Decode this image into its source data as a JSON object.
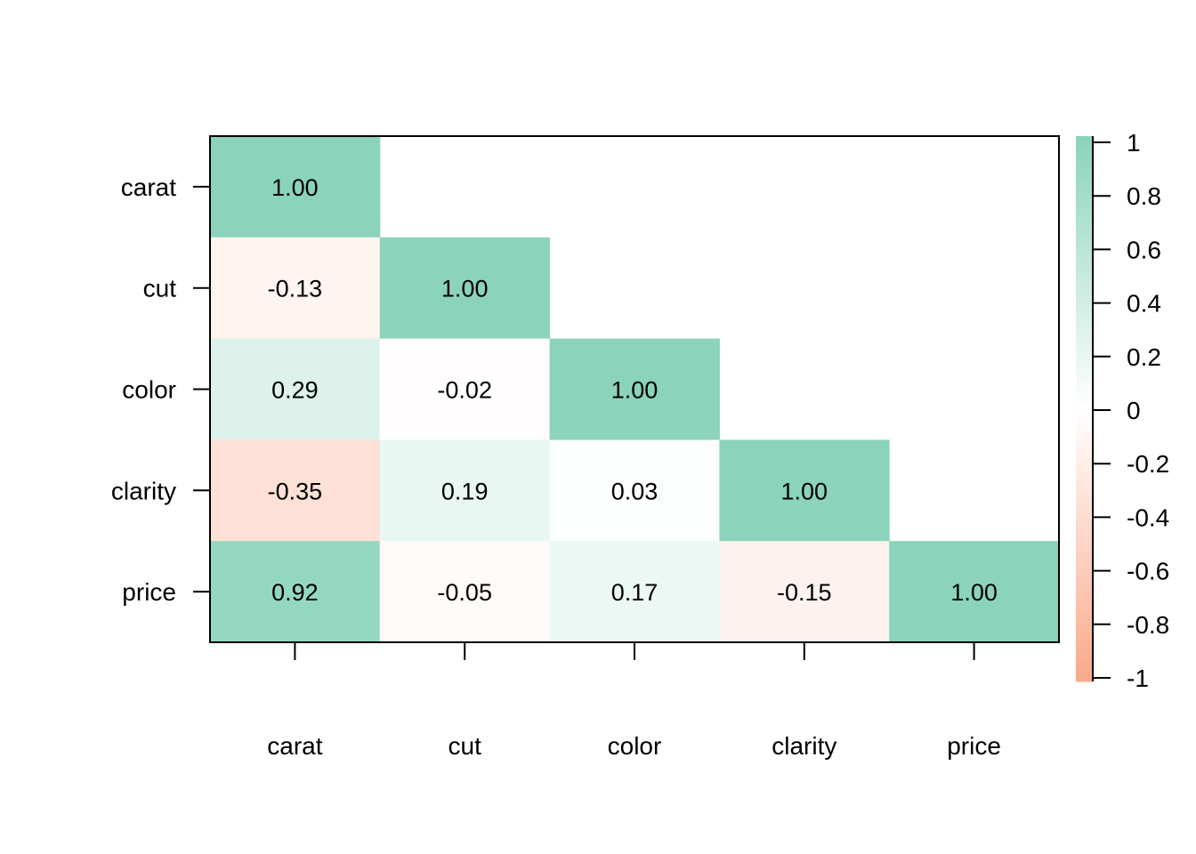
{
  "chart_data": {
    "type": "heatmap",
    "variables": [
      "carat",
      "cut",
      "color",
      "clarity",
      "price"
    ],
    "x_tick_labels": [
      "carat",
      "cut",
      "color",
      "clarity",
      "price"
    ],
    "y_tick_labels": [
      "carat",
      "cut",
      "color",
      "clarity",
      "price"
    ],
    "matrix_lower": [
      [
        1.0,
        null,
        null,
        null,
        null
      ],
      [
        -0.13,
        1.0,
        null,
        null,
        null
      ],
      [
        0.29,
        -0.02,
        1.0,
        null,
        null
      ],
      [
        -0.35,
        0.19,
        0.03,
        1.0,
        null
      ],
      [
        0.92,
        -0.05,
        0.17,
        -0.15,
        1.0
      ]
    ],
    "cell_labels": [
      [
        "1.00",
        "",
        "",
        "",
        ""
      ],
      [
        "-0.13",
        "1.00",
        "",
        "",
        ""
      ],
      [
        "0.29",
        "-0.02",
        "1.00",
        "",
        ""
      ],
      [
        "-0.35",
        "0.19",
        "0.03",
        "1.00",
        ""
      ],
      [
        "0.92",
        "-0.05",
        "0.17",
        "-0.15",
        "1.00"
      ]
    ],
    "color_scale": {
      "min": -1,
      "max": 1,
      "low_color": "#f9a98b",
      "mid_color": "#ffffff",
      "high_color": "#8bd3bb",
      "ticks": [
        1,
        0.8,
        0.6,
        0.4,
        0.2,
        0,
        -0.2,
        -0.4,
        -0.6,
        -0.8,
        -1
      ],
      "tick_labels": [
        "1",
        "0.8",
        "0.6",
        "0.4",
        "0.2",
        "0",
        "-0.2",
        "-0.4",
        "-0.6",
        "-0.8",
        "-1"
      ]
    },
    "legend_position": "right",
    "grid": false
  }
}
